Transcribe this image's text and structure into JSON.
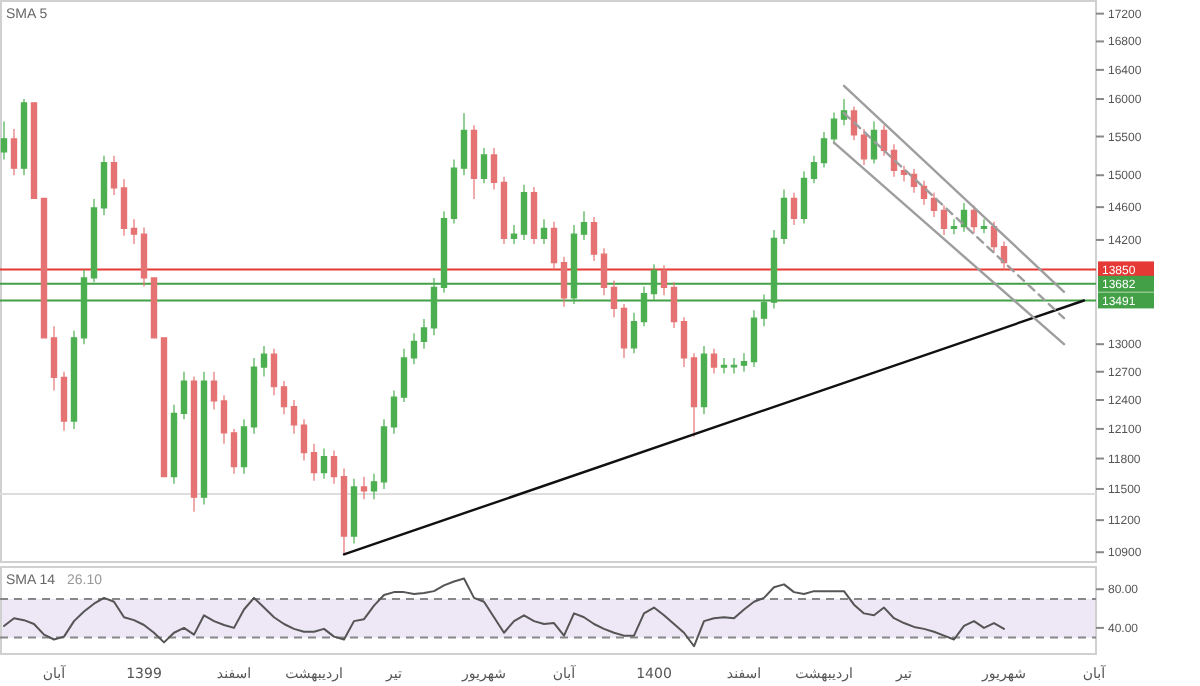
{
  "chart_data": [
    {
      "type": "candlestick",
      "tick_labels": "y",
      "log": "y",
      "categories": [
        null,
        null,
        null,
        null,
        null,
        null,
        null,
        null,
        null,
        null,
        null,
        null,
        null,
        null,
        null,
        null,
        null,
        null,
        null,
        null,
        null,
        null,
        null,
        null,
        null,
        null,
        null,
        null,
        null,
        null,
        null,
        null,
        null,
        null,
        null,
        null,
        null,
        null,
        null,
        null,
        null,
        null,
        null,
        null,
        null,
        null,
        null,
        null,
        null,
        null,
        null,
        null,
        null,
        null,
        null,
        null,
        null,
        null,
        null,
        null,
        null,
        null,
        null,
        null,
        null,
        null,
        null,
        null,
        null,
        null,
        null,
        null,
        null,
        null,
        null,
        null,
        null,
        null,
        null,
        null,
        null,
        null,
        null,
        null,
        null,
        null,
        null,
        null,
        null,
        null,
        null,
        null,
        null,
        null,
        null,
        null,
        null,
        null,
        null,
        null,
        null,
        null,
        null,
        null,
        null,
        null,
        null,
        null,
        null,
        null
      ],
      "ohlc": [
        [
          15300,
          15700,
          15200,
          15470
        ],
        [
          15470,
          15600,
          15000,
          15090
        ],
        [
          15090,
          16000,
          15000,
          15950
        ],
        [
          15950,
          15950,
          14710,
          14710
        ],
        [
          14710,
          14710,
          13070,
          13070
        ],
        [
          13070,
          13200,
          12500,
          12640
        ],
        [
          12640,
          12700,
          12080,
          12180
        ],
        [
          12180,
          13150,
          12100,
          13070
        ],
        [
          13070,
          13850,
          13000,
          13750
        ],
        [
          13750,
          14700,
          13700,
          14590
        ],
        [
          14590,
          15250,
          14500,
          15160
        ],
        [
          15160,
          15250,
          14750,
          14840
        ],
        [
          14840,
          14950,
          14250,
          14340
        ],
        [
          14340,
          14450,
          14150,
          14270
        ],
        [
          14270,
          14350,
          13650,
          13750
        ],
        [
          13750,
          13750,
          13070,
          13070
        ],
        [
          13070,
          13070,
          11620,
          11620
        ],
        [
          11620,
          12350,
          11550,
          12260
        ],
        [
          12260,
          12700,
          12200,
          12600
        ],
        [
          12600,
          12650,
          11280,
          11420
        ],
        [
          11420,
          12700,
          11350,
          12600
        ],
        [
          12600,
          12700,
          12300,
          12390
        ],
        [
          12390,
          12450,
          11950,
          12060
        ],
        [
          12060,
          12100,
          11650,
          11720
        ],
        [
          11720,
          12200,
          11650,
          12120
        ],
        [
          12120,
          12850,
          12050,
          12750
        ],
        [
          12750,
          12980,
          12650,
          12890
        ],
        [
          12890,
          12950,
          12450,
          12540
        ],
        [
          12540,
          12600,
          12250,
          12330
        ],
        [
          12330,
          12400,
          12050,
          12140
        ],
        [
          12140,
          12200,
          11780,
          11860
        ],
        [
          11860,
          11950,
          11580,
          11660
        ],
        [
          11660,
          11900,
          11600,
          11820
        ],
        [
          11820,
          11880,
          11550,
          11620
        ],
        [
          11620,
          11700,
          10880,
          11050
        ],
        [
          11050,
          11600,
          10980,
          11520
        ],
        [
          11520,
          11620,
          11400,
          11480
        ],
        [
          11480,
          11650,
          11400,
          11570
        ],
        [
          11570,
          12200,
          11500,
          12120
        ],
        [
          12120,
          12500,
          12050,
          12430
        ],
        [
          12430,
          12950,
          12380,
          12850
        ],
        [
          12850,
          13120,
          12780,
          13030
        ],
        [
          13030,
          13280,
          12950,
          13180
        ],
        [
          13180,
          13750,
          13100,
          13640
        ],
        [
          13640,
          14550,
          13580,
          14460
        ],
        [
          14460,
          15200,
          14400,
          15090
        ],
        [
          15090,
          15810,
          15000,
          15580
        ],
        [
          15580,
          15650,
          14700,
          14960
        ],
        [
          14960,
          15350,
          14900,
          15260
        ],
        [
          15260,
          15350,
          14820,
          14910
        ],
        [
          14910,
          14980,
          14150,
          14220
        ],
        [
          14220,
          14380,
          14150,
          14270
        ],
        [
          14270,
          14880,
          14200,
          14780
        ],
        [
          14780,
          14850,
          14150,
          14220
        ],
        [
          14220,
          14450,
          14150,
          14340
        ],
        [
          14340,
          14420,
          13850,
          13930
        ],
        [
          13930,
          14000,
          13420,
          13520
        ],
        [
          13520,
          14380,
          13450,
          14270
        ],
        [
          14270,
          14550,
          14200,
          14410
        ],
        [
          14410,
          14480,
          13950,
          14030
        ],
        [
          14030,
          14100,
          13550,
          13640
        ],
        [
          13640,
          13720,
          13300,
          13400
        ],
        [
          13400,
          13450,
          12850,
          12960
        ],
        [
          12960,
          13350,
          12900,
          13250
        ],
        [
          13250,
          13650,
          13200,
          13570
        ],
        [
          13570,
          13910,
          13500,
          13840
        ],
        [
          13840,
          13900,
          13550,
          13640
        ],
        [
          13640,
          13700,
          13180,
          13250
        ],
        [
          13250,
          13300,
          12750,
          12850
        ],
        [
          12850,
          12900,
          12020,
          12330
        ],
        [
          12330,
          12980,
          12250,
          12890
        ],
        [
          12890,
          12950,
          12680,
          12750
        ],
        [
          12750,
          12850,
          12680,
          12770
        ],
        [
          12770,
          12850,
          12680,
          12770
        ],
        [
          12770,
          12900,
          12700,
          12810
        ],
        [
          12810,
          13380,
          12750,
          13290
        ],
        [
          13290,
          13560,
          13200,
          13470
        ],
        [
          13470,
          14320,
          13400,
          14220
        ],
        [
          14220,
          14820,
          14150,
          14710
        ],
        [
          14710,
          14780,
          14380,
          14460
        ],
        [
          14460,
          15050,
          14400,
          14960
        ],
        [
          14960,
          15250,
          14900,
          15160
        ],
        [
          15160,
          15560,
          15100,
          15470
        ],
        [
          15470,
          15820,
          15400,
          15730
        ],
        [
          15730,
          16000,
          15650,
          15840
        ],
        [
          15840,
          15900,
          15450,
          15520
        ],
        [
          15520,
          15600,
          15130,
          15210
        ],
        [
          15210,
          15700,
          15150,
          15580
        ],
        [
          15580,
          15650,
          15250,
          15320
        ],
        [
          15320,
          15400,
          14980,
          15060
        ],
        [
          15060,
          15120,
          14920,
          15010
        ],
        [
          15010,
          15080,
          14780,
          14860
        ],
        [
          14860,
          14930,
          14630,
          14710
        ],
        [
          14710,
          14780,
          14480,
          14560
        ],
        [
          14560,
          14620,
          14260,
          14340
        ],
        [
          14340,
          14450,
          14270,
          14360
        ],
        [
          14360,
          14650,
          14300,
          14560
        ],
        [
          14560,
          14620,
          14280,
          14360
        ],
        [
          14360,
          14450,
          14280,
          14360
        ],
        [
          14360,
          14420,
          14050,
          14120
        ],
        [
          14120,
          14180,
          13850,
          13930
        ],
        null,
        null,
        null,
        null,
        null,
        null,
        null,
        null,
        null
      ],
      "series": [
        {
          "type": "line",
          "color": "#111111",
          "values": [
            null,
            null,
            null,
            null,
            null,
            null,
            null,
            null,
            null,
            null,
            null,
            null,
            null,
            null,
            null,
            null,
            null,
            null,
            null,
            null,
            null,
            null,
            null,
            null,
            null,
            null,
            null,
            null,
            null,
            null,
            null,
            null,
            null,
            null,
            10880,
            null,
            null,
            null,
            null,
            null,
            null,
            null,
            null,
            null,
            null,
            null,
            null,
            null,
            null,
            null,
            null,
            null,
            null,
            null,
            null,
            null,
            null,
            null,
            null,
            null,
            null,
            null,
            null,
            null,
            null,
            null,
            null,
            null,
            null,
            null,
            null,
            null,
            null,
            null,
            null,
            null,
            null,
            null,
            null,
            null,
            null,
            null,
            null,
            null,
            null,
            null,
            null,
            null,
            null,
            null,
            null,
            null,
            null,
            null,
            null,
            null,
            null,
            null,
            null,
            null,
            null,
            null,
            null,
            null,
            null,
            null,
            null,
            null,
            13490,
            null
          ]
        },
        {
          "type": "line",
          "color": "#9e9e9e",
          "values": [
            null,
            null,
            null,
            null,
            null,
            null,
            null,
            null,
            null,
            null,
            null,
            null,
            null,
            null,
            null,
            null,
            null,
            null,
            null,
            null,
            null,
            null,
            null,
            null,
            null,
            null,
            null,
            null,
            null,
            null,
            null,
            null,
            null,
            null,
            null,
            null,
            null,
            null,
            null,
            null,
            null,
            null,
            null,
            null,
            null,
            null,
            null,
            null,
            null,
            null,
            null,
            null,
            null,
            null,
            null,
            null,
            null,
            null,
            null,
            null,
            null,
            null,
            null,
            null,
            null,
            null,
            null,
            null,
            null,
            null,
            null,
            null,
            null,
            null,
            null,
            null,
            null,
            null,
            null,
            null,
            null,
            null,
            null,
            null,
            16180,
            null,
            null,
            null,
            null,
            null,
            null,
            null,
            null,
            null,
            null,
            null,
            null,
            null,
            null,
            null,
            null,
            null,
            null,
            null,
            null,
            null,
            13590,
            null,
            null,
            null
          ]
        },
        {
          "type": "line",
          "color": "#9e9e9e",
          "values": [
            null,
            null,
            null,
            null,
            null,
            null,
            null,
            null,
            null,
            null,
            null,
            null,
            null,
            null,
            null,
            null,
            null,
            null,
            null,
            null,
            null,
            null,
            null,
            null,
            null,
            null,
            null,
            null,
            null,
            null,
            null,
            null,
            null,
            null,
            null,
            null,
            null,
            null,
            null,
            null,
            null,
            null,
            null,
            null,
            null,
            null,
            null,
            null,
            null,
            null,
            null,
            null,
            null,
            null,
            null,
            null,
            null,
            null,
            null,
            null,
            null,
            null,
            null,
            null,
            null,
            null,
            null,
            null,
            null,
            null,
            null,
            null,
            null,
            null,
            null,
            null,
            null,
            null,
            null,
            null,
            null,
            null,
            null,
            15420,
            null,
            null,
            null,
            null,
            null,
            null,
            null,
            null,
            null,
            null,
            null,
            null,
            null,
            null,
            null,
            null,
            null,
            null,
            null,
            null,
            null,
            null,
            13000,
            null,
            null,
            null
          ]
        },
        {
          "type": "line",
          "color": "#9e9e9e",
          "line_style": "dashed",
          "values": [
            null,
            null,
            null,
            null,
            null,
            null,
            null,
            null,
            null,
            null,
            null,
            null,
            null,
            null,
            null,
            null,
            null,
            null,
            null,
            null,
            null,
            null,
            null,
            null,
            null,
            null,
            null,
            null,
            null,
            null,
            null,
            null,
            null,
            null,
            null,
            null,
            null,
            null,
            null,
            null,
            null,
            null,
            null,
            null,
            null,
            null,
            null,
            null,
            null,
            null,
            null,
            null,
            null,
            null,
            null,
            null,
            null,
            null,
            null,
            null,
            null,
            null,
            null,
            null,
            null,
            null,
            null,
            null,
            null,
            null,
            null,
            null,
            null,
            null,
            null,
            null,
            null,
            null,
            null,
            null,
            null,
            null,
            null,
            null,
            15810,
            null,
            null,
            null,
            null,
            null,
            null,
            null,
            null,
            null,
            null,
            null,
            null,
            null,
            null,
            null,
            null,
            null,
            null,
            null,
            null,
            null,
            13290,
            null,
            null,
            null
          ]
        }
      ],
      "ylim": [
        10810,
        17400
      ],
      "yticks": [
        10900,
        11200,
        11500,
        11800,
        12100,
        12400,
        12700,
        13000,
        14200,
        14600,
        15000,
        15500,
        16000,
        16400,
        16800,
        17200
      ],
      "ref_lines": [
        {
          "axis": "y",
          "value": 13850,
          "label": "13850",
          "color": "#e53935"
        },
        {
          "axis": "y",
          "value": 13682,
          "label": "13682",
          "color": "#43a047"
        },
        {
          "axis": "y",
          "value": 13491,
          "label": "13491",
          "color": "#43a047"
        },
        {
          "axis": "y",
          "value": 11450,
          "color": "#dddddd"
        }
      ],
      "annotations": [
        "SMA 5"
      ]
    },
    {
      "type": "line",
      "color": "#555555",
      "categories": [
        null,
        null,
        null,
        null,
        null,
        "آبان",
        null,
        null,
        null,
        null,
        null,
        null,
        null,
        null,
        "1399",
        null,
        null,
        null,
        null,
        null,
        null,
        null,
        null,
        "اسفند",
        null,
        null,
        null,
        null,
        null,
        null,
        null,
        "اردیبهشت",
        null,
        null,
        null,
        null,
        null,
        null,
        null,
        "تیر",
        null,
        null,
        null,
        null,
        null,
        null,
        null,
        null,
        "شهریور",
        null,
        null,
        null,
        null,
        null,
        null,
        null,
        "آبان",
        null,
        null,
        null,
        null,
        null,
        null,
        null,
        null,
        "1400",
        null,
        null,
        null,
        null,
        null,
        null,
        null,
        null,
        "اسفند",
        null,
        null,
        null,
        null,
        null,
        null,
        null,
        "اردیبهشت",
        null,
        null,
        null,
        null,
        null,
        null,
        null,
        "تیر",
        null,
        null,
        null,
        null,
        null,
        null,
        null,
        null,
        null,
        "شهریور",
        null,
        null,
        null,
        null,
        null,
        null,
        null,
        null,
        "آبان"
      ],
      "values": [
        42,
        50,
        48,
        44,
        33,
        28,
        31,
        47,
        57,
        65,
        71,
        67,
        51,
        48,
        43,
        35,
        25,
        35,
        40,
        33,
        53,
        47,
        43,
        40,
        59,
        71,
        61,
        51,
        44,
        39,
        36,
        36,
        39,
        31,
        28,
        47,
        49,
        63,
        74,
        77,
        77,
        75,
        76,
        78,
        84,
        88,
        91,
        71,
        67,
        51,
        35,
        47,
        53,
        47,
        44,
        45,
        32,
        55,
        51,
        44,
        39,
        35,
        32,
        32,
        55,
        61,
        53,
        44,
        35,
        21,
        47,
        50,
        51,
        50,
        59,
        67,
        71,
        82,
        85,
        77,
        75,
        78,
        78,
        78,
        78,
        64,
        55,
        53,
        61,
        50,
        45,
        41,
        39,
        36,
        32,
        28,
        42,
        47,
        40,
        45,
        39,
        null,
        null,
        null,
        null,
        null,
        null,
        null,
        null,
        null
      ],
      "ylim": [
        13,
        104
      ],
      "yticks": [
        {
          "value": 40,
          "label": "40.00"
        },
        {
          "value": 80,
          "label": "80.00"
        }
      ],
      "bands": [
        {
          "axis": "y",
          "from": 30,
          "to": 70,
          "color": "#ede7f6"
        }
      ],
      "ref_lines": [
        {
          "axis": "y",
          "value": 70,
          "color": "#888888",
          "line_style": "dashed"
        },
        {
          "axis": "y",
          "value": 30,
          "color": "#888888",
          "line_style": "dashed"
        }
      ],
      "annotations": [
        "SMA 14",
        "26.10"
      ]
    }
  ]
}
